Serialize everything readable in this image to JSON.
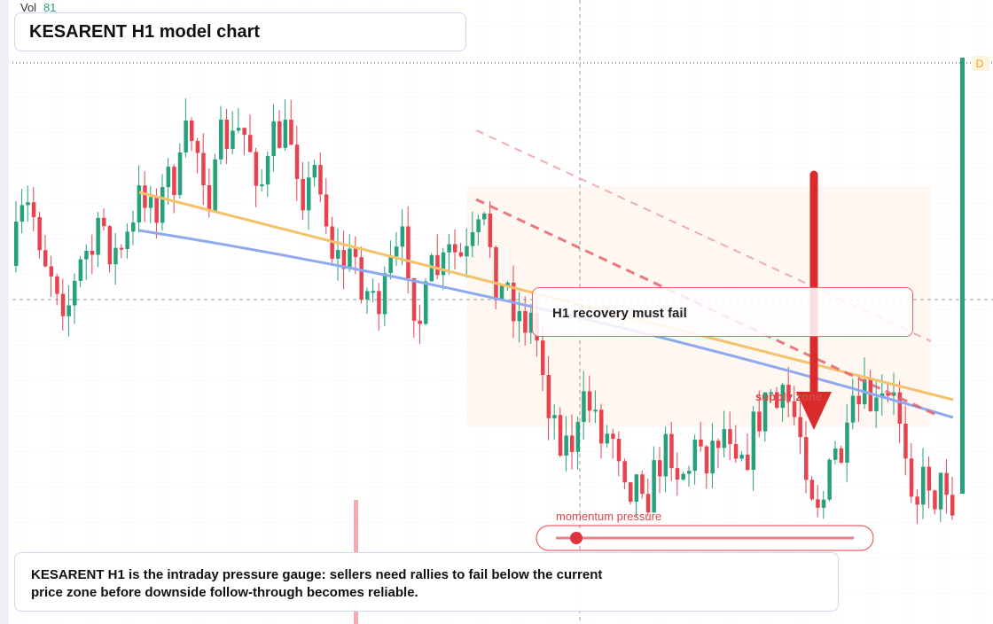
{
  "chart_data": {
    "type": "candlestick",
    "title": "KESARENT H1 model chart",
    "volume_label": "Vol",
    "volume_value": 81,
    "timeframe_badge": "D",
    "annotations": [
      "H1 recovery must fail",
      "supply zone",
      "momentum pressure"
    ],
    "caption": "KESARENT H1 is the intraday pressure gauge: sellers need rallies to fail below the current price zone before downside follow-through becomes reliable.",
    "colors": {
      "up": "#26a17b",
      "down": "#e8424f"
    }
  }
}
